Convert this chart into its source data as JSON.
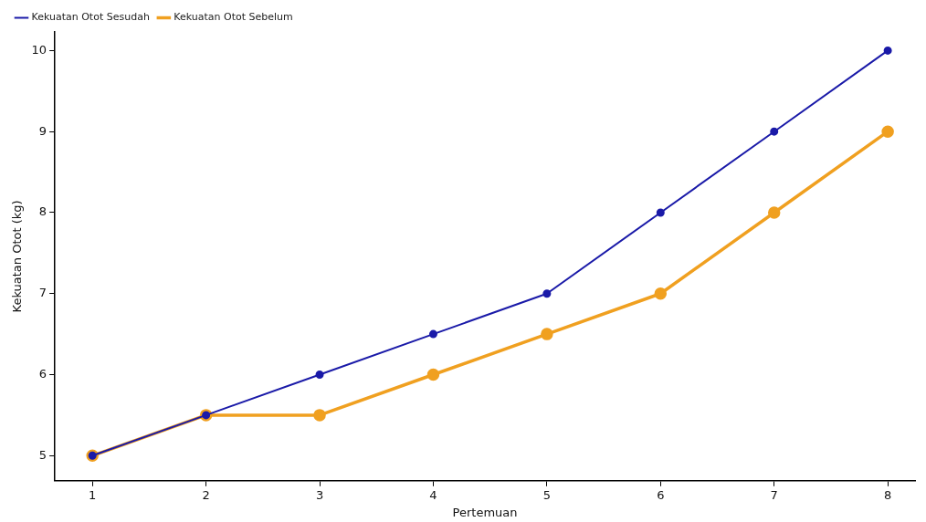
{
  "chart_data": {
    "type": "line",
    "xlabel": "Pertemuan",
    "ylabel": "Kekuatan Otot (kg)",
    "x": [
      1,
      2,
      3,
      4,
      5,
      6,
      7,
      8
    ],
    "series": [
      {
        "name": "Kekuatan Otot Sebelum",
        "color": "#f0a020",
        "values": [
          5,
          5.5,
          5.5,
          6,
          6.5,
          7,
          8,
          9
        ]
      },
      {
        "name": "Kekuatan Otot Sesudah",
        "color": "#1a1aa8",
        "values": [
          5,
          5.5,
          6,
          6.5,
          7,
          8,
          9,
          10
        ]
      }
    ],
    "xlim": [
      0.67,
      8.24
    ],
    "xticks": [
      1,
      2,
      3,
      4,
      5,
      6,
      7,
      8
    ],
    "ylim": [
      4.69,
      10.23
    ],
    "yticks": [
      5,
      6,
      7,
      8,
      9,
      10
    ],
    "grid": false,
    "legend": "top left",
    "marker": "circle",
    "line_style": "solid"
  }
}
